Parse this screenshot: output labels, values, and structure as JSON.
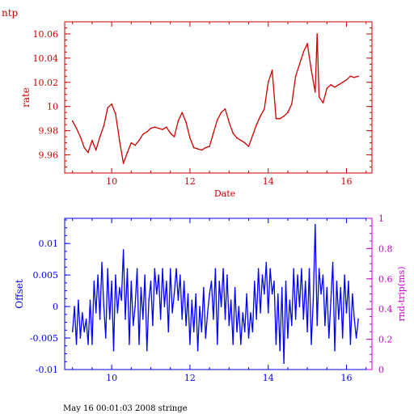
{
  "page": {
    "corner_label": "ntp",
    "footer": "May 16 00:01:03 2008 stringe"
  },
  "chart_data": [
    {
      "type": "line",
      "id": "rate-chart",
      "color": "#cc0000",
      "xlabel": "Date",
      "ylabel": "rate",
      "xlim": [
        8.8,
        16.65
      ],
      "ylim": [
        9.945,
        10.07
      ],
      "xticks": [
        10,
        12,
        14,
        16
      ],
      "xtick_labels": [
        "10",
        "12",
        "14",
        "16"
      ],
      "yticks": [
        9.96,
        9.98,
        10,
        10.02,
        10.04,
        10.06
      ],
      "ytick_labels": [
        "9.96",
        "9.98",
        "10",
        "10.02",
        "10.04",
        "10.06"
      ],
      "series": [
        {
          "x": [
            9.0,
            9.1,
            9.2,
            9.3,
            9.4,
            9.5,
            9.6,
            9.7,
            9.8,
            9.9,
            10.0,
            10.1,
            10.2,
            10.3,
            10.4,
            10.5,
            10.6,
            10.7,
            10.8,
            10.9,
            11.0,
            11.1,
            11.2,
            11.3,
            11.4,
            11.5,
            11.6,
            11.7,
            11.8,
            11.9,
            12.0,
            12.1,
            12.2,
            12.3,
            12.4,
            12.5,
            12.6,
            12.7,
            12.8,
            12.9,
            13.0,
            13.1,
            13.2,
            13.3,
            13.4,
            13.5,
            13.6,
            13.7,
            13.8,
            13.9,
            14.0,
            14.1,
            14.2,
            14.3,
            14.4,
            14.5,
            14.6,
            14.7,
            14.8,
            14.9,
            15.0,
            15.1,
            15.2,
            15.25,
            15.3,
            15.4,
            15.5,
            15.6,
            15.7,
            15.8,
            15.9,
            16.0,
            16.1,
            16.2,
            16.3
          ],
          "y": [
            9.988,
            9.982,
            9.975,
            9.966,
            9.962,
            9.972,
            9.964,
            9.975,
            9.984,
            9.999,
            10.002,
            9.994,
            9.972,
            9.953,
            9.962,
            9.97,
            9.968,
            9.972,
            9.977,
            9.979,
            9.982,
            9.983,
            9.982,
            9.981,
            9.983,
            9.978,
            9.975,
            9.988,
            9.995,
            9.987,
            9.974,
            9.966,
            9.965,
            9.964,
            9.966,
            9.967,
            9.978,
            9.989,
            9.995,
            9.998,
            9.987,
            9.978,
            9.974,
            9.972,
            9.97,
            9.967,
            9.976,
            9.985,
            9.992,
            9.998,
            10.02,
            10.03,
            9.99,
            9.99,
            9.992,
            9.995,
            10.002,
            10.025,
            10.035,
            10.045,
            10.052,
            10.03,
            10.012,
            10.06,
            10.008,
            10.003,
            10.015,
            10.018,
            10.016,
            10.018,
            10.02,
            10.022,
            10.025,
            10.024,
            10.025
          ]
        }
      ]
    },
    {
      "type": "line",
      "id": "offset-chart",
      "color": "#0000ff",
      "xlabel": "",
      "ylabel": "Offset",
      "y2label": "rnd-trip(ms)",
      "y2color": "#cc00cc",
      "xlim": [
        8.8,
        16.65
      ],
      "ylim": [
        -0.01,
        0.014
      ],
      "y2lim": [
        0,
        1
      ],
      "xticks": [
        10,
        12,
        14,
        16
      ],
      "xtick_labels": [
        "10",
        "12",
        "14",
        "16"
      ],
      "yticks": [
        -0.01,
        -0.005,
        0,
        0.005,
        0.01
      ],
      "ytick_labels": [
        "-0.01",
        "-0.005",
        "0",
        "0.005",
        "0.01"
      ],
      "y2ticks": [
        0,
        0.2,
        0.4,
        0.6,
        0.8,
        1
      ],
      "y2tick_labels": [
        "0",
        "0.2",
        "0.4",
        "0.6",
        "0.8",
        "1"
      ],
      "series": [
        {
          "x": [
            9.0,
            9.05,
            9.1,
            9.15,
            9.2,
            9.25,
            9.3,
            9.35,
            9.4,
            9.45,
            9.5,
            9.55,
            9.6,
            9.65,
            9.7,
            9.75,
            9.8,
            9.85,
            9.9,
            9.95,
            10.0,
            10.05,
            10.1,
            10.15,
            10.2,
            10.25,
            10.3,
            10.35,
            10.4,
            10.45,
            10.5,
            10.55,
            10.6,
            10.65,
            10.7,
            10.75,
            10.8,
            10.85,
            10.9,
            10.95,
            11.0,
            11.05,
            11.1,
            11.15,
            11.2,
            11.25,
            11.3,
            11.35,
            11.4,
            11.45,
            11.5,
            11.55,
            11.6,
            11.65,
            11.7,
            11.75,
            11.8,
            11.85,
            11.9,
            11.95,
            12.0,
            12.05,
            12.1,
            12.15,
            12.2,
            12.25,
            12.3,
            12.35,
            12.4,
            12.45,
            12.5,
            12.55,
            12.6,
            12.65,
            12.7,
            12.75,
            12.8,
            12.85,
            12.9,
            12.95,
            13.0,
            13.05,
            13.1,
            13.15,
            13.2,
            13.25,
            13.3,
            13.35,
            13.4,
            13.45,
            13.5,
            13.55,
            13.6,
            13.65,
            13.7,
            13.75,
            13.8,
            13.85,
            13.9,
            13.95,
            14.0,
            14.05,
            14.1,
            14.15,
            14.2,
            14.25,
            14.3,
            14.35,
            14.4,
            14.45,
            14.5,
            14.55,
            14.6,
            14.65,
            14.7,
            14.75,
            14.8,
            14.85,
            14.9,
            14.95,
            15.0,
            15.05,
            15.1,
            15.15,
            15.2,
            15.25,
            15.3,
            15.35,
            15.4,
            15.45,
            15.5,
            15.55,
            15.6,
            15.65,
            15.7,
            15.75,
            15.8,
            15.85,
            15.9,
            15.95,
            16.0,
            16.05,
            16.1,
            16.15,
            16.2,
            16.25,
            16.3
          ],
          "y": [
            -0.004,
            0.0,
            -0.006,
            0.001,
            -0.005,
            -0.001,
            -0.004,
            -0.002,
            -0.006,
            0.001,
            -0.006,
            0.004,
            -0.001,
            0.005,
            -0.002,
            0.007,
            0.0,
            -0.005,
            0.006,
            -0.002,
            0.004,
            -0.007,
            0.005,
            -0.001,
            0.003,
            0.001,
            0.009,
            -0.002,
            0.006,
            -0.006,
            0.004,
            -0.003,
            0.0,
            0.006,
            -0.006,
            0.003,
            -0.002,
            0.005,
            -0.007,
            0.001,
            0.004,
            -0.003,
            0.006,
            0.002,
            0.005,
            -0.002,
            0.006,
            0.0,
            0.004,
            -0.004,
            0.006,
            -0.001,
            0.002,
            0.006,
            0.001,
            0.005,
            -0.002,
            0.004,
            -0.003,
            0.002,
            -0.006,
            0.001,
            -0.004,
            0.002,
            -0.007,
            0.0,
            -0.004,
            0.003,
            -0.005,
            -0.001,
            0.002,
            0.004,
            -0.002,
            0.006,
            -0.006,
            0.004,
            0.0,
            0.006,
            -0.002,
            0.005,
            -0.003,
            0.001,
            -0.006,
            0.003,
            -0.004,
            0.0,
            -0.006,
            -0.001,
            -0.004,
            0.002,
            -0.005,
            -0.001,
            -0.004,
            0.004,
            -0.002,
            0.006,
            -0.001,
            0.005,
            0.002,
            0.007,
            -0.001,
            0.006,
            0.002,
            0.004,
            -0.006,
            0.002,
            -0.007,
            0.003,
            -0.009,
            0.004,
            -0.005,
            0.001,
            -0.003,
            0.006,
            -0.002,
            0.005,
            0.0,
            0.006,
            -0.002,
            0.004,
            -0.004,
            0.006,
            -0.006,
            0.001,
            0.013,
            -0.003,
            0.006,
            0.002,
            0.005,
            -0.003,
            0.003,
            -0.005,
            0.001,
            0.007,
            -0.007,
            0.004,
            -0.002,
            0.003,
            -0.005,
            0.005,
            -0.001,
            0.004,
            -0.006,
            0.002,
            -0.002,
            -0.005,
            -0.002
          ]
        }
      ]
    }
  ]
}
